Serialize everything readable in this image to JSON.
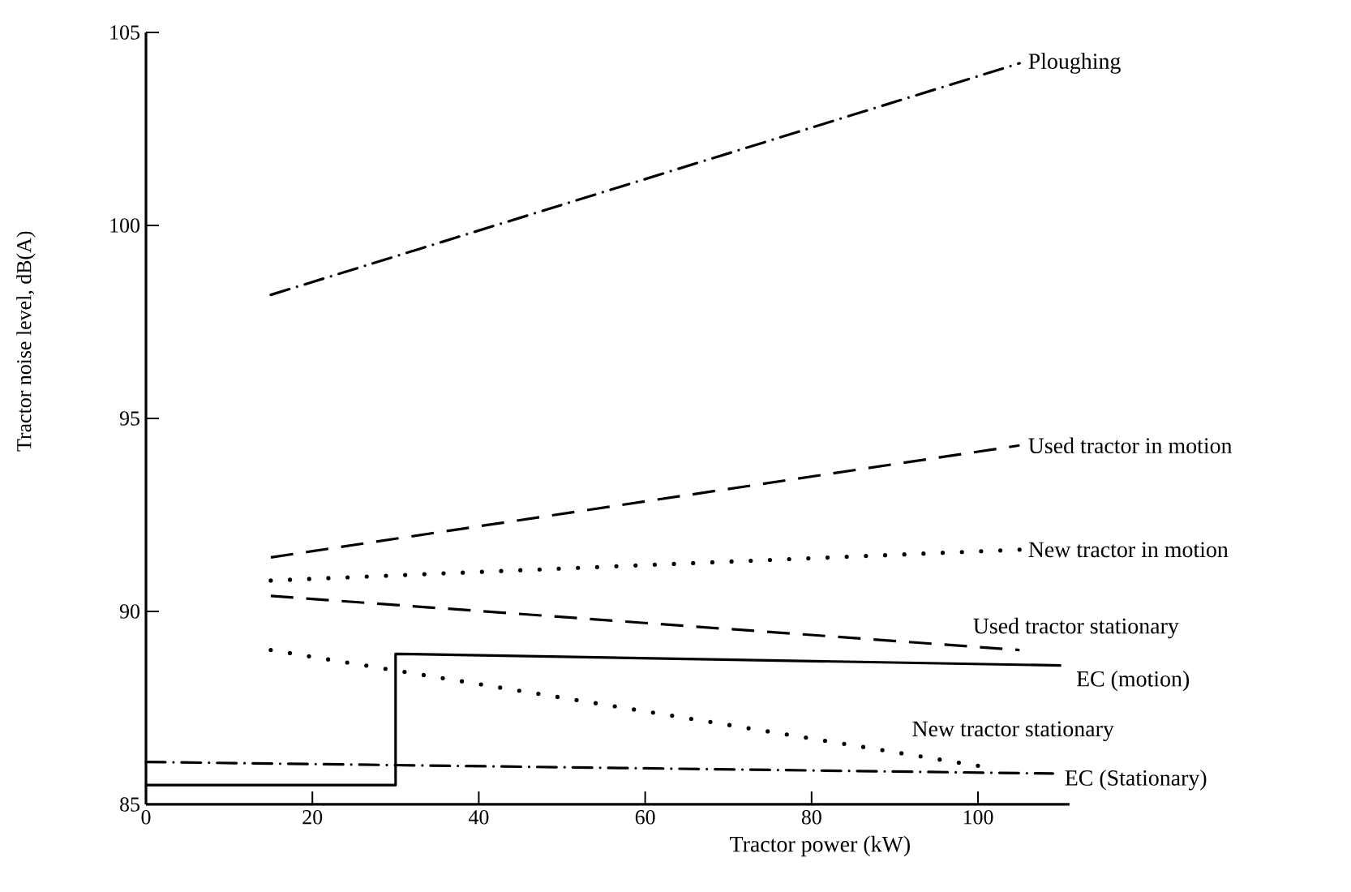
{
  "chart_data": {
    "type": "line",
    "xlabel": "Tractor power (kW)",
    "ylabel": "Tractor noise level, dB(A)",
    "xlim": [
      0,
      111
    ],
    "ylim": [
      85,
      105
    ],
    "xticks": [
      0,
      20,
      40,
      60,
      80,
      100
    ],
    "yticks": [
      85,
      90,
      95,
      100,
      105
    ],
    "grid": false,
    "legend": false,
    "marker": "none",
    "series": [
      {
        "name": "Ploughing",
        "color": "#000000",
        "line_style": "dashdot",
        "x": [
          15,
          105
        ],
        "values": [
          98.2,
          104.2
        ]
      },
      {
        "name": "Used tractor in motion",
        "color": "#000000",
        "line_style": "dashed",
        "x": [
          15,
          105
        ],
        "values": [
          91.4,
          94.3
        ]
      },
      {
        "name": "New tractor in motion",
        "color": "#000000",
        "line_style": "dotted",
        "x": [
          15,
          105
        ],
        "values": [
          90.8,
          91.6
        ]
      },
      {
        "name": "Used tractor stationary",
        "color": "#000000",
        "line_style": "dashed",
        "x": [
          15,
          105
        ],
        "values": [
          90.4,
          89.0
        ]
      },
      {
        "name": "EC (motion)",
        "color": "#000000",
        "line_style": "solid",
        "x": [
          0,
          30,
          30,
          110
        ],
        "values": [
          85.5,
          85.5,
          88.9,
          88.6
        ]
      },
      {
        "name": "New tractor stationary",
        "color": "#000000",
        "line_style": "dotted",
        "x": [
          15,
          100
        ],
        "values": [
          89.0,
          86.0
        ]
      },
      {
        "name": "EC (Stationary)",
        "color": "#000000",
        "line_style": "dashdot",
        "x": [
          0,
          109
        ],
        "values": [
          86.1,
          85.8
        ]
      }
    ]
  }
}
